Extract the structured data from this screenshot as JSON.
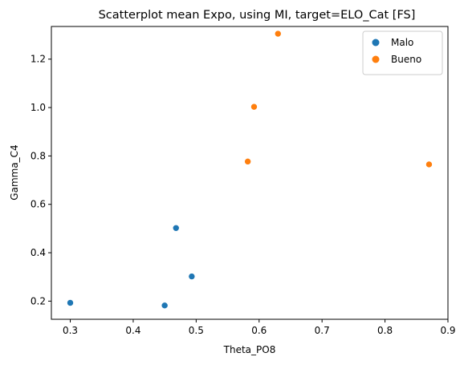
{
  "chart_data": {
    "type": "scatter",
    "title": "Scatterplot mean Expo, using MI, target=ELO_Cat [FS]",
    "xlabel": "Theta_PO8",
    "ylabel": "Gamma_C4",
    "xlim": [
      0.27,
      0.9
    ],
    "ylim": [
      0.125,
      1.335
    ],
    "x_ticks": [
      "0.3",
      "0.4",
      "0.5",
      "0.6",
      "0.7",
      "0.8",
      "0.9"
    ],
    "y_ticks": [
      "0.2",
      "0.4",
      "0.6",
      "0.8",
      "1.0",
      "1.2"
    ],
    "grid": false,
    "legend_position": "top-right",
    "series": [
      {
        "name": "Malo",
        "color": "#1f77b4",
        "points": [
          {
            "x": 0.3,
            "y": 0.193
          },
          {
            "x": 0.45,
            "y": 0.182
          },
          {
            "x": 0.468,
            "y": 0.502
          },
          {
            "x": 0.493,
            "y": 0.302
          }
        ]
      },
      {
        "name": "Bueno",
        "color": "#ff7f0e",
        "points": [
          {
            "x": 0.582,
            "y": 0.777
          },
          {
            "x": 0.592,
            "y": 1.003
          },
          {
            "x": 0.63,
            "y": 1.305
          },
          {
            "x": 0.87,
            "y": 0.765
          }
        ]
      }
    ]
  }
}
